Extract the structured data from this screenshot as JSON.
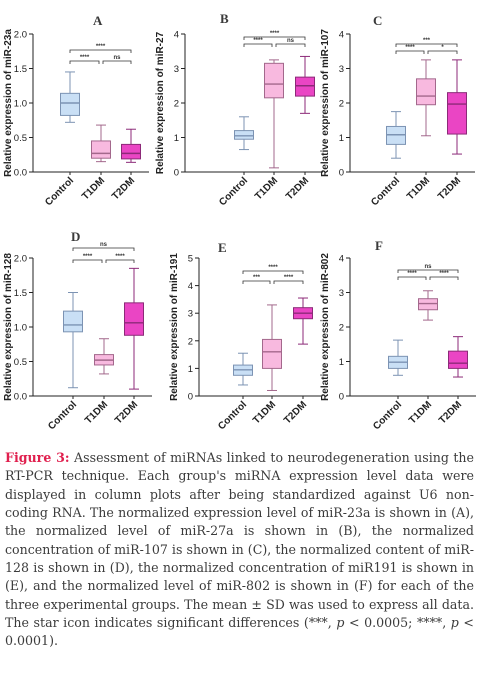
{
  "chart_data": [
    {
      "type": "box",
      "panel": "A",
      "ylabel": "Relative expression of miR-23a",
      "ylim": [
        0,
        2.0
      ],
      "yticks": [
        "0.0",
        "0.5",
        "1.0",
        "1.5",
        "2.0"
      ],
      "categories": [
        "Control",
        "T1DM",
        "T2DM"
      ],
      "boxes": [
        {
          "min": 0.72,
          "q1": 0.82,
          "median": 1.0,
          "q3": 1.14,
          "max": 1.45
        },
        {
          "min": 0.15,
          "q1": 0.2,
          "median": 0.27,
          "q3": 0.45,
          "max": 0.68
        },
        {
          "min": 0.14,
          "q1": 0.19,
          "median": 0.27,
          "q3": 0.4,
          "max": 0.62
        }
      ],
      "sig": [
        {
          "from": 0,
          "to": 2,
          "label": "****"
        },
        {
          "from": 0,
          "to": 1,
          "label": "****"
        },
        {
          "from": 1,
          "to": 2,
          "label": "ns"
        }
      ]
    },
    {
      "type": "box",
      "panel": "B",
      "ylabel": "Relative expression of miR-27",
      "ylim": [
        0,
        4
      ],
      "yticks": [
        "0",
        "1",
        "2",
        "3",
        "4"
      ],
      "categories": [
        "Control",
        "T1DM",
        "T2DM"
      ],
      "boxes": [
        {
          "min": 0.65,
          "q1": 0.95,
          "median": 1.05,
          "q3": 1.2,
          "max": 1.6
        },
        {
          "min": 0.12,
          "q1": 2.15,
          "median": 2.55,
          "q3": 3.15,
          "max": 3.25
        },
        {
          "min": 1.7,
          "q1": 2.2,
          "median": 2.5,
          "q3": 2.75,
          "max": 3.35
        }
      ],
      "sig": [
        {
          "from": 0,
          "to": 2,
          "label": "****"
        },
        {
          "from": 0,
          "to": 1,
          "label": "****"
        },
        {
          "from": 1,
          "to": 2,
          "label": "ns"
        }
      ]
    },
    {
      "type": "box",
      "panel": "C",
      "ylabel": "Relative expression of miR-107",
      "ylim": [
        0,
        4
      ],
      "yticks": [
        "0",
        "1",
        "2",
        "3",
        "4"
      ],
      "categories": [
        "Control",
        "T1DM",
        "T2DM"
      ],
      "boxes": [
        {
          "min": 0.4,
          "q1": 0.8,
          "median": 1.08,
          "q3": 1.32,
          "max": 1.75
        },
        {
          "min": 1.05,
          "q1": 1.95,
          "median": 2.2,
          "q3": 2.7,
          "max": 3.25
        },
        {
          "min": 0.52,
          "q1": 1.1,
          "median": 1.97,
          "q3": 2.3,
          "max": 3.25
        }
      ],
      "sig": [
        {
          "from": 0,
          "to": 2,
          "label": "***"
        },
        {
          "from": 0,
          "to": 1,
          "label": "****"
        },
        {
          "from": 1,
          "to": 2,
          "label": "*"
        }
      ]
    },
    {
      "type": "box",
      "panel": "D",
      "ylabel": "Relative expression of miR-128",
      "ylim": [
        0,
        2.0
      ],
      "yticks": [
        "0.0",
        "0.5",
        "1.0",
        "1.5",
        "2.0"
      ],
      "categories": [
        "Control",
        "T1DM",
        "T2DM"
      ],
      "boxes": [
        {
          "min": 0.12,
          "q1": 0.93,
          "median": 1.03,
          "q3": 1.23,
          "max": 1.5
        },
        {
          "min": 0.32,
          "q1": 0.45,
          "median": 0.52,
          "q3": 0.6,
          "max": 0.83
        },
        {
          "min": 0.1,
          "q1": 0.88,
          "median": 1.06,
          "q3": 1.35,
          "max": 1.85
        }
      ],
      "sig": [
        {
          "from": 0,
          "to": 2,
          "label": "ns"
        },
        {
          "from": 0,
          "to": 1,
          "label": "****"
        },
        {
          "from": 1,
          "to": 2,
          "label": "****"
        }
      ]
    },
    {
      "type": "box",
      "panel": "E",
      "ylabel": "Relative expression of miR-191",
      "ylim": [
        0,
        5
      ],
      "yticks": [
        "0",
        "1",
        "2",
        "3",
        "4",
        "5"
      ],
      "categories": [
        "Control",
        "T1DM",
        "T2DM"
      ],
      "boxes": [
        {
          "min": 0.4,
          "q1": 0.75,
          "median": 0.95,
          "q3": 1.12,
          "max": 1.55
        },
        {
          "min": 0.2,
          "q1": 1.0,
          "median": 1.6,
          "q3": 2.05,
          "max": 3.3
        },
        {
          "min": 1.88,
          "q1": 2.8,
          "median": 3.0,
          "q3": 3.2,
          "max": 3.55
        }
      ],
      "sig": [
        {
          "from": 0,
          "to": 2,
          "label": "****"
        },
        {
          "from": 0,
          "to": 1,
          "label": "***"
        },
        {
          "from": 1,
          "to": 2,
          "label": "****"
        }
      ]
    },
    {
      "type": "box",
      "panel": "F",
      "ylabel": "Relative expression of miR-802",
      "ylim": [
        0,
        4
      ],
      "yticks": [
        "0",
        "1",
        "2",
        "3",
        "4"
      ],
      "categories": [
        "Control",
        "T1DM",
        "T2DM"
      ],
      "boxes": [
        {
          "min": 0.6,
          "q1": 0.8,
          "median": 0.98,
          "q3": 1.15,
          "max": 1.62
        },
        {
          "min": 2.2,
          "q1": 2.5,
          "median": 2.68,
          "q3": 2.82,
          "max": 3.05
        },
        {
          "min": 0.55,
          "q1": 0.8,
          "median": 0.95,
          "q3": 1.3,
          "max": 1.72
        }
      ],
      "sig": [
        {
          "from": 0,
          "to": 2,
          "label": "ns"
        },
        {
          "from": 0,
          "to": 1,
          "label": "****"
        },
        {
          "from": 1,
          "to": 2,
          "label": "****"
        }
      ]
    }
  ],
  "colors": {
    "control_fill": "#c9dff5",
    "control_stroke": "#7c93b3",
    "t1dm_fill": "#f8b9df",
    "t1dm_stroke": "#a3688c",
    "t2dm_fill": "#ea45c4",
    "t2dm_stroke": "#8c2a78",
    "panel_label": "#3a3a3a",
    "caption_label": "#e0204e"
  },
  "caption": {
    "label": "Figure 3:",
    "t1": " Assessment of miRNAs linked to neurodegeneration using the RT-PCR technique. Each group's miRNA expression level data were displayed in column plots after being standardized against U6 non-coding RNA. The normalized expression level of miR-23a is shown in (A), the normalized level of miR-27a is shown in (B), the normalized concentration of miR-107 is shown in (C), the normalized content of miR-128 is shown in (D), the normalized concentration of miR191 is shown in (E), and the normalized level of miR-802 is shown in (F) for each of the three experimental groups. The mean ± SD was used to express all data. The star icon indicates significant differences (***, ",
    "p1": "p",
    "t2": " < 0.0005; ****, ",
    "p2": "p",
    "t3": " < 0.0001)."
  }
}
